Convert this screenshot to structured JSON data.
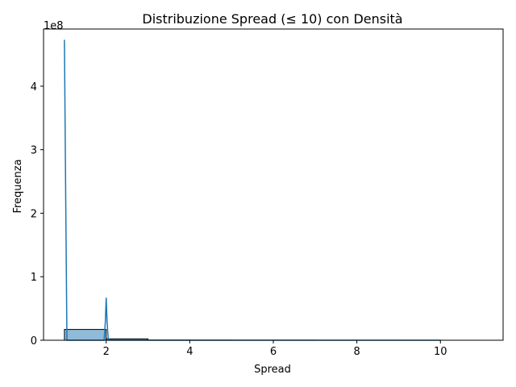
{
  "chart_data": {
    "type": "bar",
    "title": "Distribuzione Spread (≤ 10) con Densità",
    "xlabel": "Spread",
    "ylabel": "Frequenza",
    "offset_text": "1e8",
    "xlim": [
      0.5,
      11.5
    ],
    "ylim": [
      0,
      4.9
    ],
    "y_scale_note": "y values in units of 1e8",
    "x_ticks": [
      2,
      4,
      6,
      8,
      10
    ],
    "x_tick_labels": [
      "2",
      "4",
      "6",
      "8",
      "10"
    ],
    "y_ticks": [
      0,
      1,
      2,
      3,
      4
    ],
    "y_tick_labels": [
      "0",
      "1",
      "2",
      "3",
      "4"
    ],
    "grid": false,
    "histogram": {
      "bin_edges": [
        1,
        2,
        3,
        4,
        5,
        6,
        7,
        8,
        9,
        10,
        11
      ],
      "counts": [
        0.17,
        0.022,
        0.003,
        0.002,
        0.001,
        0.001,
        0.0005,
        0.0005,
        0.0003,
        0.0002
      ],
      "fill_color": "#1f77b4",
      "fill_opacity": 0.5,
      "edge_color": "#000000"
    },
    "density_curve": {
      "color": "#1f77b4",
      "x": [
        1.0,
        1.03,
        1.06,
        1.09,
        1.15,
        1.3,
        1.5,
        1.7,
        1.9,
        1.95,
        1.98,
        2.0,
        2.02,
        2.05,
        2.1,
        2.3,
        2.6,
        3.0,
        4.0,
        5.0,
        6.0,
        7.0,
        8.0,
        9.0,
        10.0
      ],
      "y": [
        4.73,
        2.3,
        0.0,
        0.0,
        0.0,
        0.0,
        0.0,
        0.0,
        0.0,
        0.0,
        0.3,
        0.67,
        0.3,
        0.0,
        0.0,
        0.0,
        0.0,
        0.0,
        0.0,
        0.0,
        0.0,
        0.0,
        0.0,
        0.0,
        0.0
      ]
    }
  }
}
